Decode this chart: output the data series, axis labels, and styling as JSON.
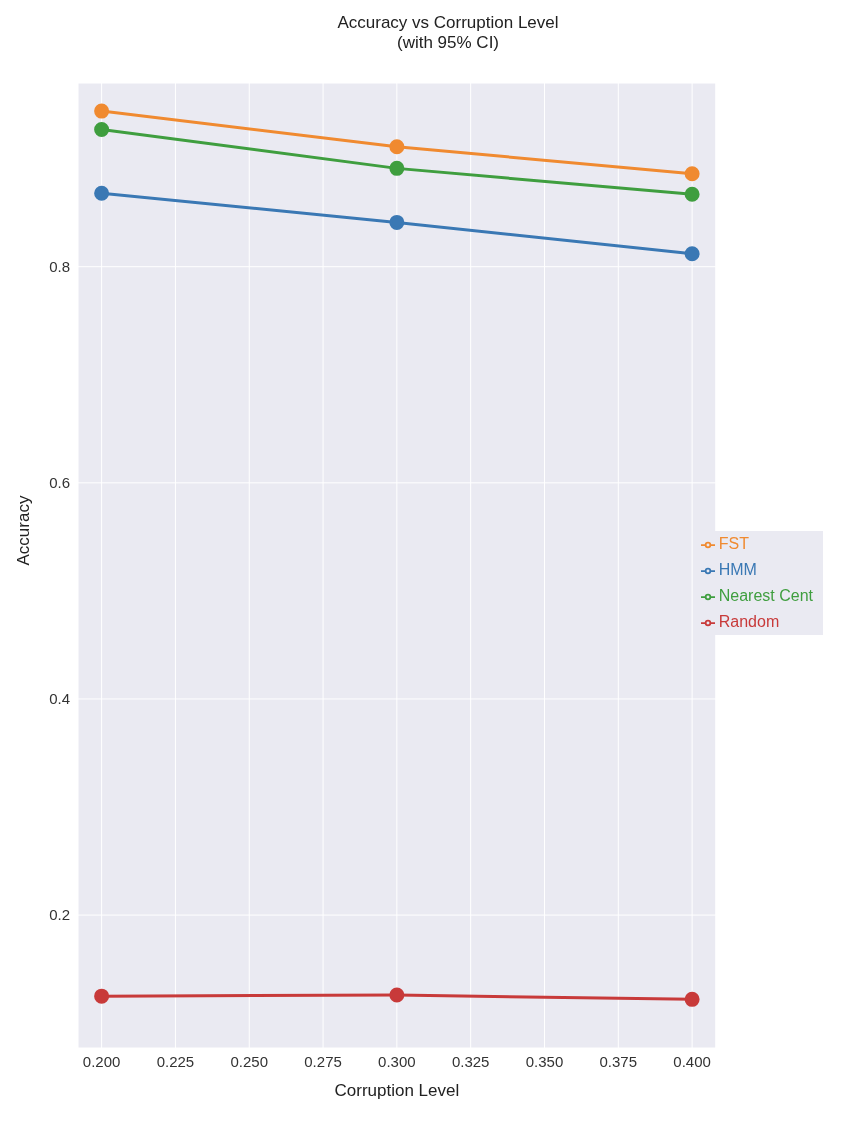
{
  "chart_data": {
    "type": "line",
    "title": "Accuracy vs Corruption Level\n(with 95% CI)",
    "xlabel": "Corruption Level",
    "ylabel": "Accuracy",
    "x": [
      0.2,
      0.3,
      0.4
    ],
    "series": [
      {
        "name": "HMM",
        "color": "#3a78b4",
        "values": [
          0.868,
          0.841,
          0.812
        ]
      },
      {
        "name": "FST",
        "color": "#f08a30",
        "values": [
          0.944,
          0.911,
          0.886
        ]
      },
      {
        "name": "Nearest Cent",
        "color": "#3f9e3f",
        "values": [
          0.927,
          0.891,
          0.867
        ]
      },
      {
        "name": "Random",
        "color": "#c83a3a",
        "values": [
          0.125,
          0.126,
          0.122
        ]
      }
    ],
    "xlim": [
      0.192,
      0.408
    ],
    "xticks": [
      {
        "value": 0.2,
        "label": "0.200"
      },
      {
        "value": 0.225,
        "label": "0.225"
      },
      {
        "value": 0.25,
        "label": "0.250"
      },
      {
        "value": 0.275,
        "label": "0.275"
      },
      {
        "value": 0.3,
        "label": "0.300"
      },
      {
        "value": 0.325,
        "label": "0.325"
      },
      {
        "value": 0.35,
        "label": "0.350"
      },
      {
        "value": 0.375,
        "label": "0.375"
      },
      {
        "value": 0.4,
        "label": "0.400"
      }
    ],
    "ylim": [
      0.077,
      0.97
    ],
    "yticks": [
      0.2,
      0.4,
      0.6,
      0.8
    ],
    "grid": true,
    "legend": "right",
    "marker": "circle",
    "line_style": "solid"
  }
}
